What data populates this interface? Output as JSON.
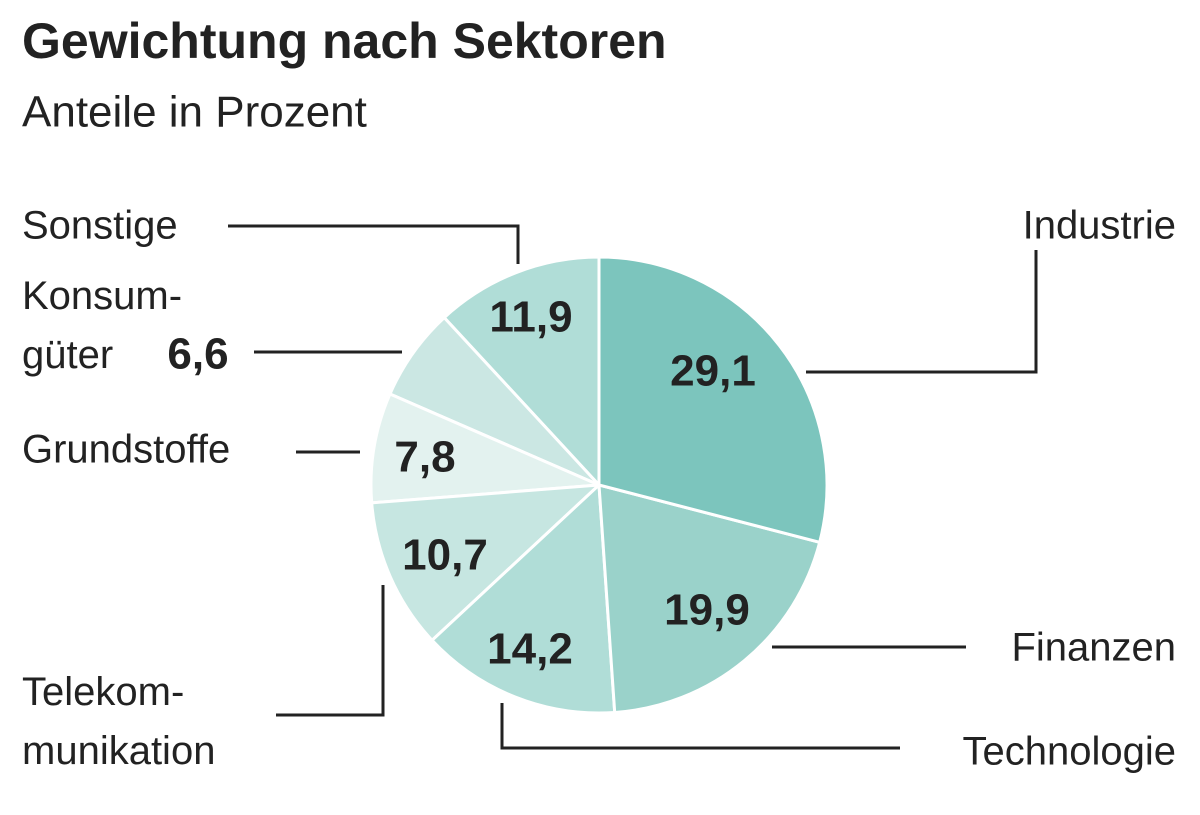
{
  "chart_data": {
    "type": "pie",
    "title": "Gewichtung nach Sektoren",
    "subtitle": "Anteile in Prozent",
    "categories": [
      "Industrie",
      "Finanzen",
      "Technologie",
      "Telekom-\nmunikation",
      "Grundstoffe",
      "Konsum-\ngüter",
      "Sonstige"
    ],
    "values": [
      29.1,
      19.9,
      14.2,
      10.7,
      7.8,
      6.6,
      11.9
    ],
    "value_labels": [
      "29,1",
      "19,9",
      "14,2",
      "10,7",
      "7,8",
      "6,6",
      "11,9"
    ],
    "colors": [
      "#7cc5bd",
      "#9ad2ca",
      "#b0ddd7",
      "#c6e6e1",
      "#e3f2ef",
      "#cbe7e3",
      "#b0ddd7"
    ]
  }
}
